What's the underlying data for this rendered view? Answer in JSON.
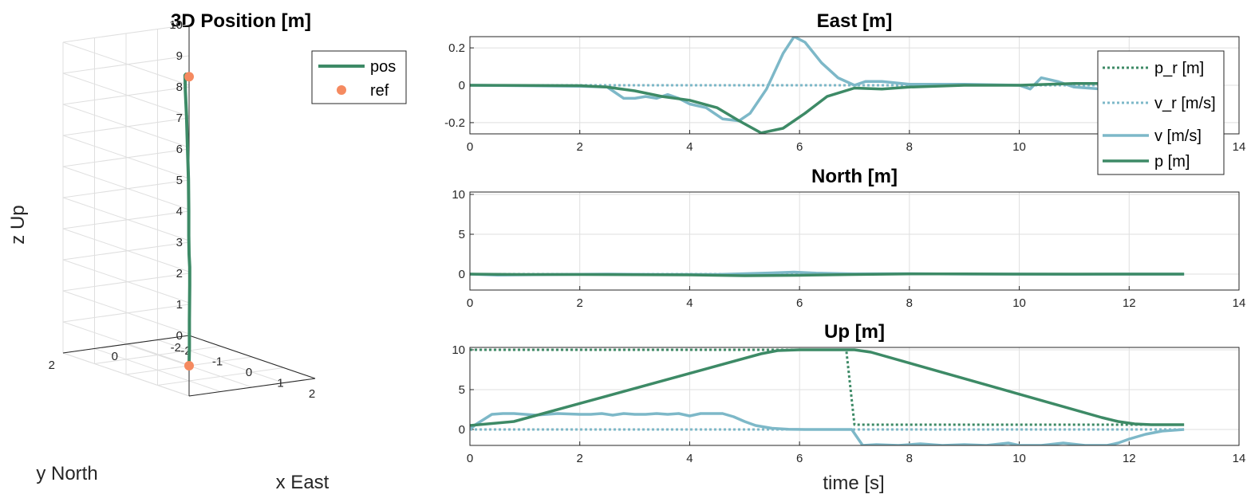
{
  "colors": {
    "pos_green": "#3d8a66",
    "vel_blue": "#7db8c8",
    "ref_orange": "#f58a60"
  },
  "chart_data": [
    {
      "type": "line",
      "id": "pos3d",
      "title": "3D Position [m]",
      "xlabel": "x East",
      "ylabel": "y North",
      "zlabel": "z Up",
      "xlim": [
        -2,
        2
      ],
      "ylim": [
        -2,
        2
      ],
      "zlim": [
        0,
        10
      ],
      "xticks": [
        "-2",
        "-1",
        "0",
        "1",
        "2"
      ],
      "yticks": [
        "-2",
        "0",
        "2"
      ],
      "zticks": [
        "0",
        "1",
        "2",
        "3",
        "4",
        "5",
        "6",
        "7",
        "8",
        "9",
        "10"
      ],
      "grid": true,
      "legend_location": "top-right",
      "series": [
        {
          "name": "pos",
          "style": "solid",
          "color": "#3d8a66",
          "points": [
            [
              0,
              0,
              0.05
            ],
            [
              0.01,
              0,
              0.6
            ],
            [
              0.03,
              0.02,
              1.5
            ],
            [
              0.05,
              0.03,
              2.6
            ],
            [
              0.06,
              0.04,
              3.2
            ],
            [
              0.04,
              0.04,
              3.6
            ],
            [
              0.02,
              0.03,
              4.2
            ],
            [
              0.01,
              0.02,
              5.0
            ],
            [
              -0.02,
              0,
              6.0
            ],
            [
              -0.06,
              -0.01,
              7.0
            ],
            [
              -0.1,
              -0.02,
              8.0
            ],
            [
              -0.14,
              -0.02,
              8.8
            ],
            [
              -0.13,
              0,
              9.3
            ],
            [
              -0.1,
              0,
              9.35
            ],
            [
              -0.02,
              0,
              9.35
            ],
            [
              0,
              0,
              9.3
            ]
          ]
        },
        {
          "name": "ref",
          "style": "marker",
          "color": "#f58a60",
          "points": [
            [
              0,
              0,
              0
            ],
            [
              0,
              0,
              9.3
            ]
          ]
        }
      ]
    },
    {
      "type": "line",
      "id": "east",
      "title": "East [m]",
      "xlim": [
        0,
        14
      ],
      "ylim": [
        -0.26,
        0.26
      ],
      "xticks": [
        0,
        2,
        4,
        6,
        8,
        10,
        12,
        14
      ],
      "yticks": [
        -0.2,
        0,
        0.2
      ],
      "ytick_labels": [
        "-0.2",
        "0",
        "0.2"
      ],
      "grid": true,
      "legend_location": "top-right",
      "series": [
        {
          "name": "p_r [m]",
          "style": "dotted",
          "color": "#3d8a66",
          "x": [
            0,
            13
          ],
          "y": [
            0,
            0
          ]
        },
        {
          "name": "v_r [m/s]",
          "style": "dotted",
          "color": "#7db8c8",
          "x": [
            0,
            13
          ],
          "y": [
            0,
            0
          ]
        },
        {
          "name": "v [m/s]",
          "style": "solid",
          "color": "#7db8c8",
          "x": [
            0,
            2,
            2.5,
            2.6,
            2.8,
            3,
            3.2,
            3.4,
            3.6,
            3.8,
            4,
            4.3,
            4.6,
            4.9,
            5.1,
            5.4,
            5.7,
            5.9,
            6.1,
            6.4,
            6.7,
            7,
            7.2,
            7.5,
            8,
            9,
            10,
            10.2,
            10.4,
            10.7,
            11,
            11.5,
            12,
            13
          ],
          "y": [
            0,
            -0.005,
            -0.01,
            -0.03,
            -0.07,
            -0.07,
            -0.06,
            -0.07,
            -0.05,
            -0.07,
            -0.1,
            -0.12,
            -0.18,
            -0.19,
            -0.15,
            -0.02,
            0.17,
            0.26,
            0.23,
            0.12,
            0.04,
            0,
            0.02,
            0.02,
            0.005,
            0.005,
            0,
            -0.02,
            0.04,
            0.02,
            -0.01,
            -0.02,
            -0.01,
            0
          ]
        },
        {
          "name": "p [m]",
          "style": "solid",
          "color": "#3d8a66",
          "x": [
            0,
            2,
            2.5,
            3,
            3.5,
            4,
            4.5,
            4.9,
            5.3,
            5.7,
            6.1,
            6.5,
            7,
            7.5,
            8,
            9,
            10,
            11,
            12,
            13
          ],
          "y": [
            0,
            -0.002,
            -0.01,
            -0.03,
            -0.06,
            -0.08,
            -0.12,
            -0.19,
            -0.255,
            -0.23,
            -0.15,
            -0.06,
            -0.015,
            -0.02,
            -0.01,
            0,
            0,
            0.01,
            0.01,
            0.01
          ]
        }
      ]
    },
    {
      "type": "line",
      "id": "north",
      "title": "North [m]",
      "xlim": [
        0,
        14
      ],
      "ylim": [
        -2,
        10.3
      ],
      "xticks": [
        0,
        2,
        4,
        6,
        8,
        10,
        12,
        14
      ],
      "yticks": [
        0,
        5,
        10
      ],
      "ytick_labels": [
        "0",
        "5",
        "10"
      ],
      "grid": true,
      "series": [
        {
          "name": "p_r [m]",
          "style": "dotted",
          "color": "#3d8a66",
          "x": [
            0,
            13
          ],
          "y": [
            0,
            0
          ]
        },
        {
          "name": "v_r [m/s]",
          "style": "dotted",
          "color": "#7db8c8",
          "x": [
            0,
            13
          ],
          "y": [
            0,
            0
          ]
        },
        {
          "name": "v [m/s]",
          "style": "solid",
          "color": "#7db8c8",
          "x": [
            0,
            0.5,
            1.5,
            2.5,
            3.5,
            4.5,
            5.5,
            5.9,
            6.3,
            7,
            8,
            9,
            10,
            11,
            12,
            13
          ],
          "y": [
            0,
            -0.12,
            -0.05,
            0,
            -0.05,
            -0.05,
            0.15,
            0.25,
            0.12,
            0.02,
            0.05,
            0,
            0,
            -0.02,
            0,
            0
          ]
        },
        {
          "name": "p [m]",
          "style": "solid",
          "color": "#3d8a66",
          "x": [
            0,
            1,
            2,
            3,
            4,
            5,
            6,
            7,
            8,
            9,
            10,
            11,
            12,
            13
          ],
          "y": [
            0,
            -0.05,
            -0.05,
            -0.07,
            -0.1,
            -0.2,
            -0.15,
            -0.05,
            0.02,
            0.02,
            0,
            0,
            0,
            0
          ]
        }
      ]
    },
    {
      "type": "line",
      "id": "up",
      "title": "Up [m]",
      "xlabel": "time [s]",
      "xlim": [
        0,
        14
      ],
      "ylim": [
        -2,
        10.3
      ],
      "xticks": [
        0,
        2,
        4,
        6,
        8,
        10,
        12,
        14
      ],
      "yticks": [
        0,
        5,
        10
      ],
      "ytick_labels": [
        "0",
        "5",
        "10"
      ],
      "grid": true,
      "series": [
        {
          "name": "p_r [m]",
          "style": "dotted",
          "color": "#3d8a66",
          "x": [
            0,
            6.85,
            7.0,
            13
          ],
          "y": [
            10,
            10,
            0.6,
            0.6
          ]
        },
        {
          "name": "v_r [m/s]",
          "style": "dotted",
          "color": "#7db8c8",
          "x": [
            0,
            13
          ],
          "y": [
            0,
            0
          ]
        },
        {
          "name": "v [m/s]",
          "style": "solid",
          "color": "#7db8c8",
          "x": [
            0,
            0.1,
            0.4,
            0.6,
            0.8,
            1.2,
            1.6,
            2,
            2.2,
            2.4,
            2.6,
            2.8,
            3,
            3.2,
            3.4,
            3.6,
            3.8,
            4,
            4.2,
            4.6,
            4.8,
            5.0,
            5.2,
            5.5,
            5.8,
            6.1,
            6.6,
            6.95,
            7.15,
            7.4,
            7.8,
            8.2,
            8.6,
            9,
            9.4,
            9.8,
            10,
            10.4,
            10.8,
            11.2,
            11.6,
            11.8,
            12.0,
            12.3,
            12.6,
            13
          ],
          "y": [
            0,
            0.6,
            1.9,
            2,
            2,
            1.8,
            2,
            1.9,
            1.9,
            2,
            1.8,
            2,
            1.9,
            1.9,
            2,
            1.9,
            2,
            1.7,
            2,
            2,
            1.6,
            1.0,
            0.5,
            0.15,
            0.02,
            0,
            0,
            0,
            -2,
            -1.9,
            -2,
            -1.8,
            -2,
            -1.9,
            -2,
            -1.7,
            -2,
            -2,
            -1.7,
            -2,
            -2,
            -1.7,
            -1.2,
            -0.6,
            -0.2,
            0
          ]
        },
        {
          "name": "p [m]",
          "style": "solid",
          "color": "#3d8a66",
          "x": [
            0,
            0.8,
            5.3,
            5.6,
            6.0,
            6.8,
            7.0,
            7.3,
            11.5,
            11.8,
            12.1,
            12.4,
            13
          ],
          "y": [
            0.5,
            1.0,
            9.5,
            9.9,
            10,
            10,
            10,
            9.7,
            1.5,
            1.0,
            0.7,
            0.6,
            0.6
          ]
        }
      ]
    }
  ]
}
